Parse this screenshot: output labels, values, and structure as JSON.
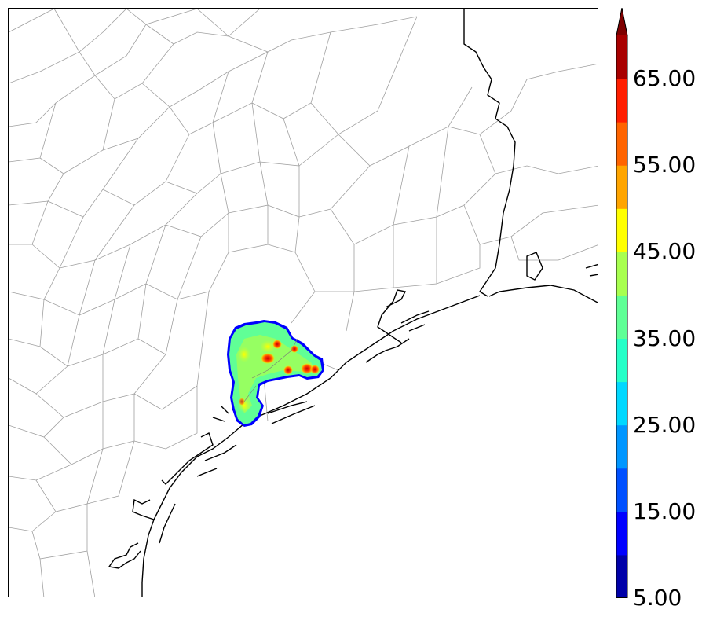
{
  "map": {
    "description_free": true,
    "colors": {
      "county_lines": "#9a9a9a",
      "coastline": "#000000",
      "land": "#ffffff",
      "water": "#ffffff"
    }
  },
  "colorbar": {
    "levels": [
      5,
      10,
      15,
      20,
      25,
      30,
      35,
      40,
      45,
      50,
      55,
      60,
      65,
      70
    ],
    "colors": [
      "#0000a8",
      "#0000ff",
      "#0050ff",
      "#0096ff",
      "#00d8ff",
      "#25ffc8",
      "#60ff96",
      "#a8ff50",
      "#ffff00",
      "#ffa500",
      "#ff6400",
      "#ff1e00",
      "#a80000"
    ],
    "extend_color": "#7f0000",
    "tick_labels": [
      "5.00",
      "15.00",
      "25.00",
      "35.00",
      "45.00",
      "55.00",
      "65.00"
    ]
  }
}
